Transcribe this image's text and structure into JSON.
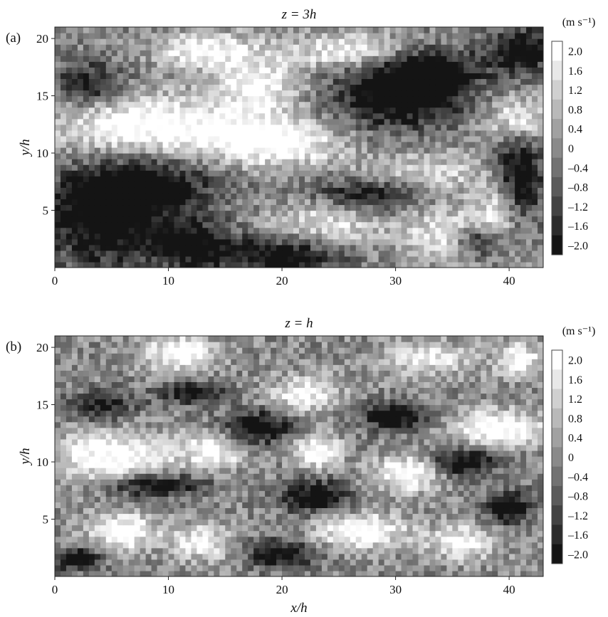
{
  "figure": {
    "xlabel": "x/h"
  },
  "chart_data": [
    {
      "type": "heatmap",
      "panel_label": "(a)",
      "title": "z = 3h",
      "xlabel": "",
      "ylabel": "y/h",
      "xlim": [
        0,
        43
      ],
      "ylim": [
        0,
        21
      ],
      "xticks": [
        0,
        10,
        20,
        30,
        40
      ],
      "yticks": [
        5,
        10,
        15,
        20
      ],
      "grid": false,
      "colorbar": {
        "unit_label": "(m s⁻¹)",
        "levels": [
          2.0,
          1.6,
          1.2,
          0.8,
          0.4,
          0,
          -0.4,
          -0.8,
          -1.2,
          -1.6,
          -2.0
        ],
        "tick_labels": [
          "2.0",
          "1.6",
          "1.2",
          "0.8",
          "0.4",
          "0",
          "–0.4",
          "–0.8",
          "–1.2",
          "–1.6",
          "–2.0"
        ],
        "colormap": "grayscale: white = high, black = low"
      },
      "features": [
        {
          "x": 4,
          "y": 4,
          "v": -2.0,
          "rx": 5,
          "ry": 4
        },
        {
          "x": 8,
          "y": 7,
          "v": -2.0,
          "rx": 6,
          "ry": 2.5
        },
        {
          "x": 3,
          "y": 16,
          "v": -1.6,
          "rx": 3,
          "ry": 2
        },
        {
          "x": 8,
          "y": 12.5,
          "v": 2.0,
          "rx": 8,
          "ry": 2.5
        },
        {
          "x": 19,
          "y": 11,
          "v": 2.0,
          "rx": 6,
          "ry": 2
        },
        {
          "x": 18,
          "y": 16,
          "v": 1.6,
          "rx": 4,
          "ry": 3
        },
        {
          "x": 13,
          "y": 19,
          "v": 1.6,
          "rx": 4,
          "ry": 1.5
        },
        {
          "x": 26,
          "y": 19,
          "v": 1.6,
          "rx": 5,
          "ry": 1.5
        },
        {
          "x": 30,
          "y": 15,
          "v": -2.0,
          "rx": 6,
          "ry": 3
        },
        {
          "x": 33,
          "y": 17,
          "v": -2.0,
          "rx": 4,
          "ry": 2
        },
        {
          "x": 41,
          "y": 19,
          "v": -2.0,
          "rx": 3,
          "ry": 2
        },
        {
          "x": 41,
          "y": 13,
          "v": 1.6,
          "rx": 3,
          "ry": 2
        },
        {
          "x": 41,
          "y": 8,
          "v": -2.0,
          "rx": 2,
          "ry": 4
        },
        {
          "x": 28,
          "y": 6.5,
          "v": -2.0,
          "rx": 5,
          "ry": 1.5
        },
        {
          "x": 32,
          "y": 8,
          "v": 1.2,
          "rx": 6,
          "ry": 2
        },
        {
          "x": 24,
          "y": 4,
          "v": 1.2,
          "rx": 5,
          "ry": 2
        },
        {
          "x": 35,
          "y": 3,
          "v": 1.6,
          "rx": 4,
          "ry": 2
        },
        {
          "x": 37,
          "y": 2.5,
          "v": -2.0,
          "rx": 2,
          "ry": 1.5
        },
        {
          "x": 12,
          "y": 2,
          "v": -2.0,
          "rx": 4,
          "ry": 2
        },
        {
          "x": 20,
          "y": 1,
          "v": -2.0,
          "rx": 5,
          "ry": 1.5
        },
        {
          "x": 39,
          "y": 5,
          "v": 1.2,
          "rx": 2,
          "ry": 2
        }
      ]
    },
    {
      "type": "heatmap",
      "panel_label": "(b)",
      "title": "z = h",
      "xlabel": "x/h",
      "ylabel": "y/h",
      "xlim": [
        0,
        43
      ],
      "ylim": [
        0,
        21
      ],
      "xticks": [
        0,
        10,
        20,
        30,
        40
      ],
      "yticks": [
        5,
        10,
        15,
        20
      ],
      "grid": false,
      "colorbar": {
        "unit_label": "(m s⁻¹)",
        "levels": [
          2.0,
          1.6,
          1.2,
          0.8,
          0.4,
          0,
          -0.4,
          -0.8,
          -1.2,
          -1.6,
          -2.0
        ],
        "tick_labels": [
          "2.0",
          "1.6",
          "1.2",
          "0.8",
          "0.4",
          "0",
          "–0.4",
          "–0.8",
          "–1.2",
          "–1.6",
          "–2.0"
        ],
        "colormap": "grayscale: white = high, black = low"
      },
      "features": [
        {
          "x": 5,
          "y": 10.5,
          "v": 2.0,
          "rx": 5,
          "ry": 2
        },
        {
          "x": 11,
          "y": 19.5,
          "v": 2.0,
          "rx": 3,
          "ry": 1.5
        },
        {
          "x": 6,
          "y": 4,
          "v": 2.0,
          "rx": 3,
          "ry": 1.5
        },
        {
          "x": 14,
          "y": 11,
          "v": 1.6,
          "rx": 3,
          "ry": 1.5
        },
        {
          "x": 13,
          "y": 3,
          "v": 1.6,
          "rx": 2.5,
          "ry": 1.5
        },
        {
          "x": 23,
          "y": 11,
          "v": 2.0,
          "rx": 2,
          "ry": 1.5
        },
        {
          "x": 31,
          "y": 9,
          "v": 2.0,
          "rx": 3,
          "ry": 1.5
        },
        {
          "x": 27,
          "y": 4,
          "v": 2.0,
          "rx": 4,
          "ry": 1.5
        },
        {
          "x": 39,
          "y": 13,
          "v": 2.0,
          "rx": 4,
          "ry": 1.5
        },
        {
          "x": 22,
          "y": 16,
          "v": 1.6,
          "rx": 3,
          "ry": 1.5
        },
        {
          "x": 33,
          "y": 19,
          "v": 1.2,
          "rx": 4,
          "ry": 1.5
        },
        {
          "x": 41,
          "y": 19,
          "v": 1.6,
          "rx": 2,
          "ry": 1.5
        },
        {
          "x": 36,
          "y": 3,
          "v": 1.6,
          "rx": 3,
          "ry": 1.5
        },
        {
          "x": 18,
          "y": 13,
          "v": -2.0,
          "rx": 3,
          "ry": 1.5
        },
        {
          "x": 23,
          "y": 7,
          "v": -2.0,
          "rx": 3,
          "ry": 1.5
        },
        {
          "x": 9,
          "y": 8,
          "v": -2.0,
          "rx": 4,
          "ry": 1
        },
        {
          "x": 4,
          "y": 15,
          "v": -1.6,
          "rx": 3,
          "ry": 1.2
        },
        {
          "x": 30,
          "y": 14,
          "v": -2.0,
          "rx": 3,
          "ry": 1.2
        },
        {
          "x": 36,
          "y": 10,
          "v": -2.0,
          "rx": 3,
          "ry": 1.2
        },
        {
          "x": 20,
          "y": 2,
          "v": -2.0,
          "rx": 3,
          "ry": 1.2
        },
        {
          "x": 12,
          "y": 16,
          "v": -1.6,
          "rx": 3,
          "ry": 1
        },
        {
          "x": 40,
          "y": 6,
          "v": -2.0,
          "rx": 2,
          "ry": 1.5
        },
        {
          "x": 2,
          "y": 1.5,
          "v": -2.0,
          "rx": 2,
          "ry": 1
        }
      ]
    }
  ]
}
